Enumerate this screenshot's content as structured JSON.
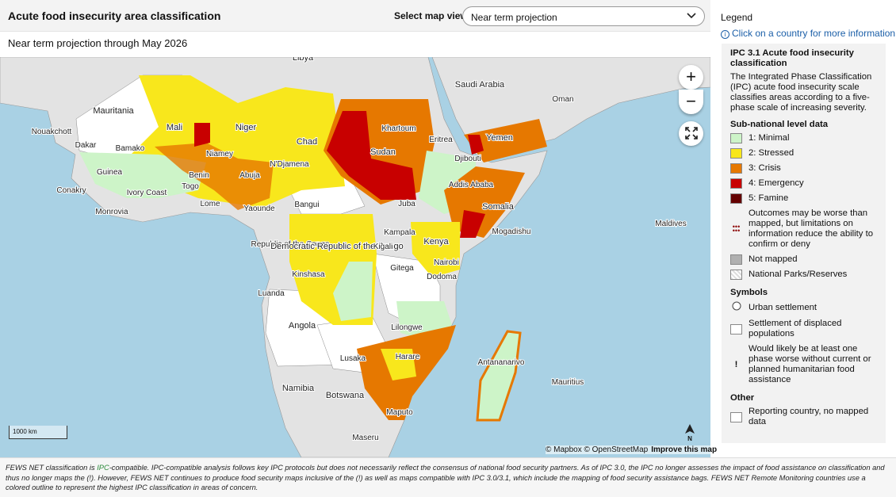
{
  "header": {
    "title": "Acute food insecurity area classification",
    "select_label": "Select map view",
    "select_value": "Near term projection"
  },
  "subtitle": "Near term projection through May 2026",
  "map": {
    "labels": [
      "Libya",
      "Saudi Arabia",
      "Oman",
      "Mauritania",
      "Nouakchott",
      "Mali",
      "Niger",
      "Chad",
      "Sudan",
      "Khartoum",
      "Eritrea",
      "Yemen",
      "Dakar",
      "Bamako",
      "Niamey",
      "Djibouti",
      "Guinea",
      "N'Djamena",
      "Abuja",
      "Benin",
      "Togo",
      "Addis Ababa",
      "Conakry",
      "Ivory Coast",
      "Lome",
      "Yaounde",
      "Bangui",
      "Juba",
      "Somalia",
      "Monrovia",
      "Mogadishu",
      "Kampala",
      "Kenya",
      "Republic of the Congo",
      "Democratic Republic of the Congo",
      "Kigali",
      "Nairobi",
      "Gitega",
      "Kinshasa",
      "Dodoma",
      "Maldives",
      "Luanda",
      "Angola",
      "Lilongwe",
      "Lusaka",
      "Harare",
      "Antananarivo",
      "Mauritius",
      "Namibia",
      "Botswana",
      "Maputo",
      "Maseru"
    ],
    "zoom_in": "+",
    "zoom_out": "−",
    "scale": "1000 km",
    "north": "N",
    "attribution": "© Mapbox © OpenStreetMap",
    "improve": "Improve this map"
  },
  "legend": {
    "title": "Legend",
    "info": "Click on a country for more information",
    "heading": "IPC 3.1 Acute food insecurity classification",
    "description": "The Integrated Phase Classification (IPC) acute food insecurity scale classifies areas according to a five-phase scale of increasing severity.",
    "subnational": "Sub-national level data",
    "phases": [
      {
        "label": "1: Minimal",
        "color": "#cdf4c8"
      },
      {
        "label": "2: Stressed",
        "color": "#f8e71c"
      },
      {
        "label": "3: Crisis",
        "color": "#e67800"
      },
      {
        "label": "4: Emergency",
        "color": "#c80000"
      },
      {
        "label": "5: Famine",
        "color": "#640000"
      }
    ],
    "outcomes": "Outcomes may be worse than mapped, but limitations on information reduce the ability to confirm or deny",
    "not_mapped": "Not mapped",
    "parks": "National Parks/Reserves",
    "symbols_heading": "Symbols",
    "urban": "Urban settlement",
    "displaced": "Settlement of displaced populations",
    "exclaim": "!",
    "worse": "Would likely be at least one phase worse without current or planned humanitarian food assistance",
    "other_heading": "Other",
    "reporting": "Reporting country, no mapped data"
  },
  "footer": {
    "before": "FEWS NET classification is ",
    "link": "IPC",
    "after": "-compatible. IPC-compatible analysis follows key IPC protocols but does not necessarily reflect the consensus of national food security partners. As of IPC 3.0, the IPC no longer assesses the impact of food assistance on classification and thus no longer maps the (!). However, FEWS NET continues to produce food security maps inclusive of the (!) as well as maps compatible with IPC 3.0/3.1, which include the mapping of food security assistance bags. FEWS NET Remote Monitoring countries use a colored outline to represent the highest IPC classification in areas of concern."
  }
}
